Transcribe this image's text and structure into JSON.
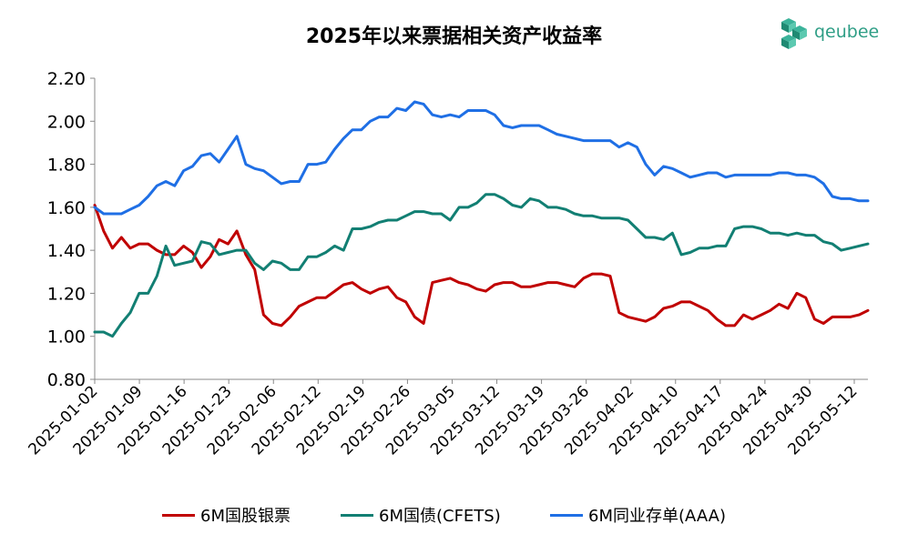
{
  "header": {
    "title": "2025年以来票据相关资产收益率"
  },
  "logo": {
    "text": "qeubee",
    "icon": "cube-logo-icon",
    "color": "#2f9e86"
  },
  "chart_data": {
    "type": "line",
    "title": "2025年以来票据相关资产收益率",
    "xlabel": "",
    "ylabel": "",
    "ylim": [
      0.8,
      2.2
    ],
    "yticks": [
      "0.80",
      "1.00",
      "1.20",
      "1.40",
      "1.60",
      "1.80",
      "2.00",
      "2.20"
    ],
    "xtick_labels": [
      "2025-01-02",
      "2025-01-09",
      "2025-01-16",
      "2025-01-23",
      "2025-02-06",
      "2025-02-12",
      "2025-02-19",
      "2025-02-26",
      "2025-03-05",
      "2025-03-12",
      "2025-03-19",
      "2025-03-26",
      "2025-04-02",
      "2025-04-10",
      "2025-04-17",
      "2025-04-24",
      "2025-04-30",
      "2025-05-12"
    ],
    "grid": false,
    "legend_position": "bottom",
    "series": [
      {
        "name": "6M国股银票",
        "color": "#c00000",
        "values": [
          1.61,
          1.49,
          1.41,
          1.46,
          1.41,
          1.43,
          1.43,
          1.4,
          1.38,
          1.38,
          1.42,
          1.39,
          1.32,
          1.37,
          1.45,
          1.43,
          1.49,
          1.38,
          1.31,
          1.1,
          1.06,
          1.05,
          1.09,
          1.14,
          1.16,
          1.18,
          1.18,
          1.21,
          1.24,
          1.25,
          1.22,
          1.2,
          1.22,
          1.23,
          1.18,
          1.16,
          1.09,
          1.06,
          1.25,
          1.26,
          1.27,
          1.25,
          1.24,
          1.22,
          1.21,
          1.24,
          1.25,
          1.25,
          1.23,
          1.23,
          1.24,
          1.25,
          1.25,
          1.24,
          1.23,
          1.27,
          1.29,
          1.29,
          1.28,
          1.11,
          1.09,
          1.08,
          1.07,
          1.09,
          1.13,
          1.14,
          1.16,
          1.16,
          1.14,
          1.12,
          1.08,
          1.05,
          1.05,
          1.1,
          1.08,
          1.1,
          1.12,
          1.15,
          1.13,
          1.2,
          1.18,
          1.08,
          1.06,
          1.09,
          1.09,
          1.09,
          1.1,
          1.12
        ]
      },
      {
        "name": "6M国债(CFETS)",
        "color": "#127f73",
        "values": [
          1.02,
          1.02,
          1.0,
          1.06,
          1.11,
          1.2,
          1.2,
          1.28,
          1.42,
          1.33,
          1.34,
          1.35,
          1.44,
          1.43,
          1.38,
          1.39,
          1.4,
          1.4,
          1.34,
          1.31,
          1.35,
          1.34,
          1.31,
          1.31,
          1.37,
          1.37,
          1.39,
          1.42,
          1.4,
          1.5,
          1.5,
          1.51,
          1.53,
          1.54,
          1.54,
          1.56,
          1.58,
          1.58,
          1.57,
          1.57,
          1.54,
          1.6,
          1.6,
          1.62,
          1.66,
          1.66,
          1.64,
          1.61,
          1.6,
          1.64,
          1.63,
          1.6,
          1.6,
          1.59,
          1.57,
          1.56,
          1.56,
          1.55,
          1.55,
          1.55,
          1.54,
          1.5,
          1.46,
          1.46,
          1.45,
          1.48,
          1.38,
          1.39,
          1.41,
          1.41,
          1.42,
          1.42,
          1.5,
          1.51,
          1.51,
          1.5,
          1.48,
          1.48,
          1.47,
          1.48,
          1.47,
          1.47,
          1.44,
          1.43,
          1.4,
          1.41,
          1.42,
          1.43
        ]
      },
      {
        "name": "6M同业存单(AAA)",
        "color": "#1f6fe5",
        "values": [
          1.6,
          1.57,
          1.57,
          1.57,
          1.59,
          1.61,
          1.65,
          1.7,
          1.72,
          1.7,
          1.77,
          1.79,
          1.84,
          1.85,
          1.81,
          1.87,
          1.93,
          1.8,
          1.78,
          1.77,
          1.74,
          1.71,
          1.72,
          1.72,
          1.8,
          1.8,
          1.81,
          1.87,
          1.92,
          1.96,
          1.96,
          2.0,
          2.02,
          2.02,
          2.06,
          2.05,
          2.09,
          2.08,
          2.03,
          2.02,
          2.03,
          2.02,
          2.05,
          2.05,
          2.05,
          2.03,
          1.98,
          1.97,
          1.98,
          1.98,
          1.98,
          1.96,
          1.94,
          1.93,
          1.92,
          1.91,
          1.91,
          1.91,
          1.91,
          1.88,
          1.9,
          1.88,
          1.8,
          1.75,
          1.79,
          1.78,
          1.76,
          1.74,
          1.75,
          1.76,
          1.76,
          1.74,
          1.75,
          1.75,
          1.75,
          1.75,
          1.75,
          1.76,
          1.76,
          1.75,
          1.75,
          1.74,
          1.71,
          1.65,
          1.64,
          1.64,
          1.63,
          1.63
        ]
      }
    ]
  }
}
